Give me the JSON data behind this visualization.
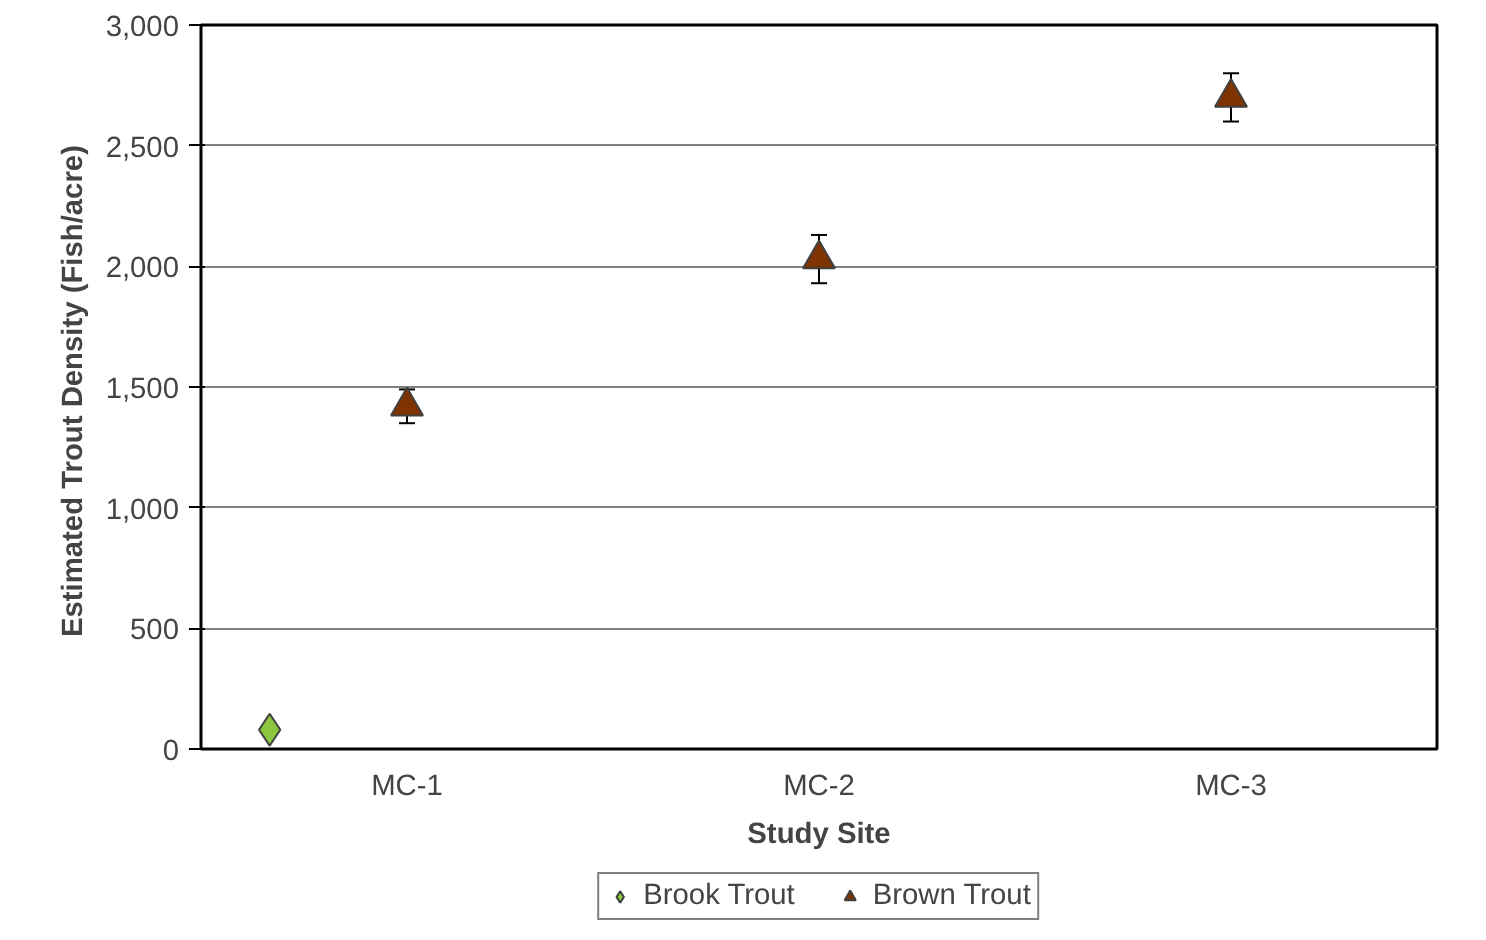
{
  "chart_data": {
    "type": "scatter",
    "xlabel": "Study Site",
    "ylabel": "Estimated Trout Density  (Fish/acre)",
    "categories": [
      "MC-1",
      "MC-2",
      "MC-3"
    ],
    "series": [
      {
        "name": "Brook Trout",
        "color": "#8cc63f",
        "marker": "diamond",
        "values": [
          80,
          null,
          null
        ]
      },
      {
        "name": "Brown Trout",
        "color": "#7f3300",
        "marker": "triangle",
        "values": [
          1420,
          2030,
          2700
        ],
        "errors": [
          70,
          100,
          100
        ]
      }
    ],
    "ylim": [
      0,
      3000
    ],
    "yticks": [
      {
        "value": 0,
        "label": "0"
      },
      {
        "value": 500,
        "label": "500"
      },
      {
        "value": 1000,
        "label": "1,000"
      },
      {
        "value": 1500,
        "label": "1,500"
      },
      {
        "value": 2000,
        "label": "2,000"
      },
      {
        "value": 2500,
        "label": "2,500"
      },
      {
        "value": 3000,
        "label": "3,000"
      }
    ],
    "grid": "y",
    "legend": "bottom"
  }
}
